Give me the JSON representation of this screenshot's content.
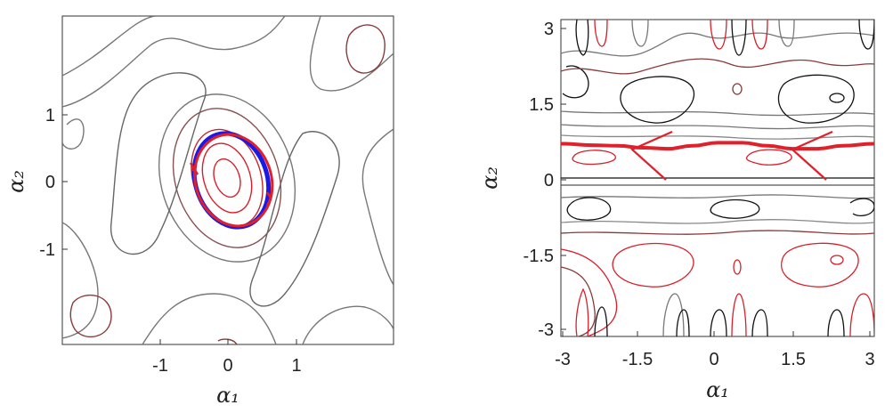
{
  "chart_data": [
    {
      "type": "contour",
      "xlabel": "α₁",
      "ylabel": "α₂",
      "x_ticks": [
        "-1",
        "0",
        "1"
      ],
      "y_ticks": [
        "1",
        "0",
        "-1"
      ],
      "xlim": [
        -2.4,
        2.4
      ],
      "ylim": [
        -2.4,
        2.4
      ],
      "grid": false,
      "series": [
        {
          "kind": "orbit",
          "color": "#1a1ae6",
          "shape": "ellipse",
          "center": [
            0.05,
            0.0
          ],
          "semi_axes": [
            0.52,
            0.7
          ],
          "rotation_deg": -18
        },
        {
          "kind": "orbit",
          "color": "#e0202a",
          "shape": "ellipse",
          "center": [
            0.08,
            0.0
          ],
          "semi_axes": [
            0.55,
            0.68
          ],
          "rotation_deg": -18
        }
      ]
    },
    {
      "type": "contour",
      "xlabel": "α₁",
      "ylabel": "α₂",
      "x_ticks": [
        "-3",
        "-1.5",
        "0",
        "1.5",
        "3"
      ],
      "y_ticks": [
        "3",
        "1.5",
        "0",
        "-1.5",
        "-3"
      ],
      "xlim": [
        -3.14,
        3.14
      ],
      "ylim": [
        -3.14,
        3.14
      ],
      "grid": false,
      "series": [
        {
          "kind": "trajectory",
          "color": "#e0202a",
          "x": [
            -3.14,
            -2.5,
            -2.0,
            -1.5,
            -1.0,
            -0.5,
            0.0,
            0.5,
            1.0,
            1.5,
            2.0,
            2.5,
            3.14
          ],
          "y": [
            0.68,
            0.65,
            0.64,
            0.6,
            0.58,
            0.64,
            0.7,
            0.7,
            0.64,
            0.58,
            0.58,
            0.64,
            0.68
          ]
        }
      ]
    }
  ],
  "colors": {
    "dark_contour": "#111111",
    "gray_contour": "#777777",
    "maroon_contour": "#8a3a3a",
    "red_contour": "#d8202a",
    "blue_orbit": "#1a1ae6",
    "red_orbit": "#e0202a"
  }
}
